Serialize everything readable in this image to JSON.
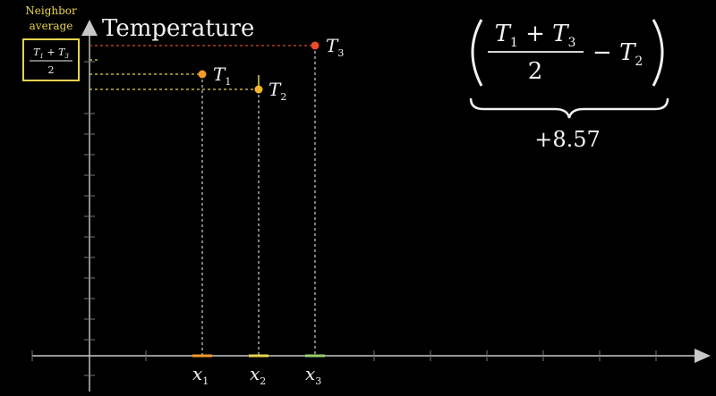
{
  "y_axis_label": "Temperature",
  "neighbor_box": {
    "title_line1": "Neighbor",
    "title_line2": "average",
    "frac_numerator": "T1 + T3",
    "frac_denominator": "2"
  },
  "formula": {
    "numerator": "T1 + T3",
    "denominator": "2",
    "minus_term": "T2",
    "result": "+8.57"
  },
  "points": [
    {
      "name": "T1",
      "x_label": "x1",
      "color": "#f59b2b"
    },
    {
      "name": "T2",
      "x_label": "x2",
      "color": "#f5b52b"
    },
    {
      "name": "T3",
      "x_label": "x3",
      "color": "#ee4b2b"
    }
  ],
  "colors": {
    "background": "#000000",
    "axis": "#c8c8c8",
    "highlight_yellow": "#e8d44d",
    "x1_marker": "#f59b2b",
    "x2_marker": "#e8d44d",
    "x3_marker": "#9bcf6e",
    "text": "#f2f2f2"
  }
}
